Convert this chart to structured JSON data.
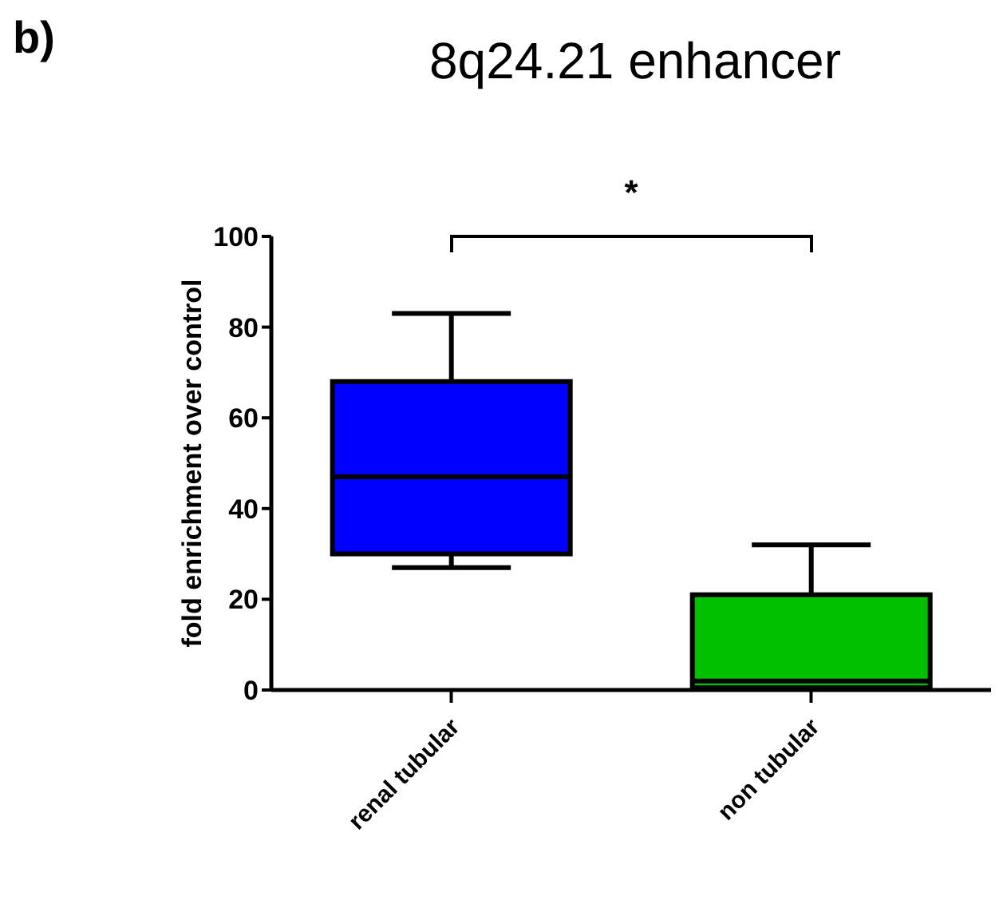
{
  "chart_data": {
    "type": "box",
    "title": "8q24.21 enhancer",
    "ylabel": "fold enrichment over control",
    "categories": [
      "renal tubular",
      "non tubular"
    ],
    "boxes": [
      {
        "low": 27,
        "q1": 30,
        "median": 47,
        "q3": 68,
        "high": 83
      },
      {
        "low": 0,
        "q1": 0.5,
        "median": 2,
        "q3": 21,
        "high": 32
      }
    ],
    "colors": [
      "#0000ff",
      "#00c000"
    ],
    "ylim": [
      0,
      100
    ],
    "yticks": [
      0,
      20,
      40,
      60,
      80,
      100
    ],
    "annotations": [
      "b)",
      "*"
    ]
  }
}
